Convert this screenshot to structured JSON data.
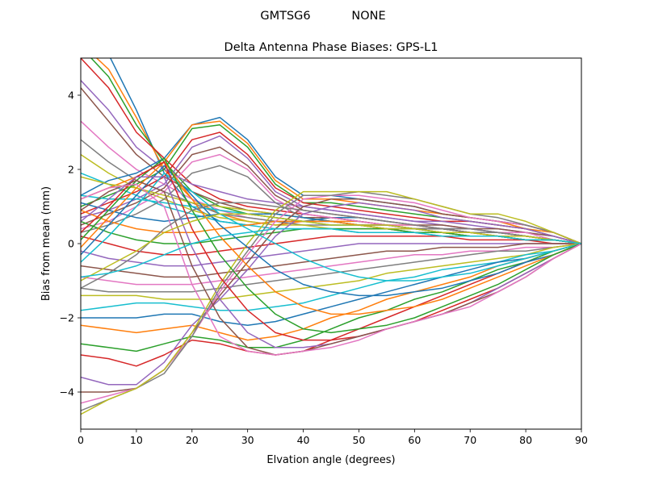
{
  "chart_data": {
    "type": "line",
    "suptitle": "GMTSG6           NONE",
    "title": "Delta Antenna Phase Biases: GPS-L1",
    "xlabel": "Elvation angle (degrees)",
    "ylabel": "Bias from mean (mm)",
    "xlim": [
      0,
      90
    ],
    "ylim": [
      -5,
      5
    ],
    "xticks": [
      0,
      10,
      20,
      30,
      40,
      50,
      60,
      70,
      80,
      90
    ],
    "yticks": [
      -4,
      -2,
      0,
      2,
      4
    ],
    "ytick_labels": [
      "−4",
      "−2",
      "0",
      "2",
      "4"
    ],
    "grid": false,
    "legend": "none",
    "x": [
      0,
      5,
      10,
      15,
      20,
      25,
      30,
      35,
      40,
      45,
      50,
      55,
      60,
      65,
      70,
      75,
      80,
      85,
      90
    ],
    "colors": [
      "#1f77b4",
      "#ff7f0e",
      "#2ca02c",
      "#d62728",
      "#9467bd",
      "#8c564b",
      "#e377c2",
      "#7f7f7f",
      "#bcbd22",
      "#17becf"
    ],
    "series": [
      {
        "values": [
          5.6,
          5.1,
          3.6,
          1.9,
          1.0,
          0.6,
          0.5,
          0.6,
          0.6,
          0.7,
          0.7,
          0.6,
          0.5,
          0.4,
          0.4,
          0.3,
          0.2,
          0.1,
          0.0
        ]
      },
      {
        "values": [
          5.4,
          4.7,
          3.4,
          2.0,
          1.2,
          0.8,
          0.6,
          0.5,
          0.6,
          0.6,
          0.6,
          0.5,
          0.5,
          0.4,
          0.3,
          0.3,
          0.2,
          0.1,
          0.0
        ]
      },
      {
        "values": [
          5.3,
          4.5,
          3.2,
          2.2,
          1.4,
          1.0,
          0.8,
          0.7,
          0.6,
          0.6,
          0.5,
          0.5,
          0.4,
          0.4,
          0.3,
          0.3,
          0.2,
          0.1,
          0.0
        ]
      },
      {
        "values": [
          5.0,
          4.2,
          3.0,
          2.3,
          1.6,
          1.2,
          1.0,
          0.9,
          0.8,
          0.7,
          0.6,
          0.5,
          0.4,
          0.4,
          0.3,
          0.3,
          0.2,
          0.1,
          0.0
        ]
      },
      {
        "values": [
          4.4,
          3.6,
          2.6,
          2.0,
          1.6,
          1.4,
          1.2,
          1.1,
          1.0,
          0.9,
          0.8,
          0.7,
          0.6,
          0.5,
          0.4,
          0.3,
          0.2,
          0.1,
          0.0
        ]
      },
      {
        "values": [
          4.2,
          3.3,
          2.4,
          1.8,
          1.4,
          1.1,
          0.9,
          0.8,
          0.7,
          0.7,
          0.6,
          0.5,
          0.4,
          0.4,
          0.3,
          0.2,
          0.2,
          0.1,
          0.0
        ]
      },
      {
        "values": [
          3.3,
          2.6,
          2.0,
          1.6,
          1.2,
          0.9,
          0.7,
          0.6,
          0.6,
          0.6,
          0.5,
          0.5,
          0.4,
          0.3,
          0.3,
          0.2,
          0.2,
          0.1,
          0.0
        ]
      },
      {
        "values": [
          2.8,
          2.2,
          1.7,
          1.4,
          1.1,
          0.8,
          0.7,
          0.6,
          0.5,
          0.5,
          0.5,
          0.4,
          0.4,
          0.3,
          0.3,
          0.2,
          0.1,
          0.1,
          0.0
        ]
      },
      {
        "values": [
          2.4,
          1.9,
          1.5,
          1.2,
          0.9,
          0.7,
          0.6,
          0.5,
          0.5,
          0.4,
          0.4,
          0.4,
          0.3,
          0.3,
          0.2,
          0.2,
          0.1,
          0.1,
          0.0
        ]
      },
      {
        "values": [
          1.9,
          1.6,
          1.3,
          1.0,
          0.8,
          0.6,
          0.5,
          0.4,
          0.4,
          0.4,
          0.3,
          0.3,
          0.3,
          0.2,
          0.2,
          0.2,
          0.1,
          0.1,
          0.0
        ]
      },
      {
        "values": [
          1.3,
          1.7,
          1.9,
          2.3,
          3.2,
          3.4,
          2.8,
          1.8,
          1.3,
          1.3,
          1.2,
          1.1,
          1.0,
          0.8,
          0.7,
          0.6,
          0.5,
          0.3,
          0.0
        ]
      },
      {
        "values": [
          1.2,
          1.5,
          1.8,
          2.2,
          3.2,
          3.3,
          2.7,
          1.7,
          1.2,
          1.2,
          1.1,
          1.0,
          0.9,
          0.8,
          0.7,
          0.6,
          0.4,
          0.3,
          0.0
        ]
      },
      {
        "values": [
          1.0,
          1.3,
          1.6,
          2.0,
          3.1,
          3.2,
          2.6,
          1.6,
          1.1,
          1.1,
          1.0,
          0.9,
          0.8,
          0.7,
          0.6,
          0.5,
          0.4,
          0.2,
          0.0
        ]
      },
      {
        "values": [
          0.8,
          1.1,
          1.4,
          1.8,
          2.8,
          3.0,
          2.4,
          1.5,
          1.1,
          1.0,
          0.9,
          0.8,
          0.7,
          0.6,
          0.6,
          0.5,
          0.4,
          0.2,
          0.0
        ]
      },
      {
        "values": [
          0.7,
          0.9,
          1.2,
          1.6,
          2.6,
          2.9,
          2.3,
          1.4,
          1.0,
          0.9,
          0.8,
          0.7,
          0.6,
          0.6,
          0.5,
          0.4,
          0.3,
          0.2,
          0.0
        ]
      },
      {
        "values": [
          0.5,
          0.8,
          1.1,
          1.5,
          2.4,
          2.6,
          2.1,
          1.3,
          0.9,
          0.8,
          0.7,
          0.6,
          0.5,
          0.5,
          0.4,
          0.4,
          0.3,
          0.2,
          0.0
        ]
      },
      {
        "values": [
          0.4,
          0.6,
          1.0,
          1.4,
          2.2,
          2.4,
          2.0,
          1.2,
          0.8,
          0.7,
          0.6,
          0.5,
          0.5,
          0.4,
          0.4,
          0.3,
          0.3,
          0.1,
          0.0
        ]
      },
      {
        "values": [
          0.3,
          0.5,
          0.8,
          1.2,
          1.9,
          2.1,
          1.8,
          1.1,
          0.7,
          0.6,
          0.5,
          0.5,
          0.4,
          0.4,
          0.3,
          0.3,
          0.2,
          0.1,
          0.0
        ]
      },
      {
        "values": [
          1.8,
          1.6,
          1.5,
          1.3,
          1.1,
          1.0,
          0.9,
          0.8,
          0.7,
          0.6,
          0.5,
          0.5,
          0.4,
          0.3,
          0.3,
          0.2,
          0.2,
          0.1,
          0.0
        ]
      },
      {
        "values": [
          1.3,
          1.2,
          1.2,
          1.1,
          1.0,
          0.9,
          0.8,
          0.7,
          0.6,
          0.5,
          0.5,
          0.4,
          0.3,
          0.3,
          0.2,
          0.2,
          0.1,
          0.1,
          0.0
        ]
      },
      {
        "values": [
          1.1,
          0.9,
          0.7,
          0.6,
          0.7,
          0.8,
          0.8,
          0.8,
          0.7,
          0.6,
          0.5,
          0.4,
          0.4,
          0.3,
          0.2,
          0.2,
          0.1,
          0.1,
          0.0
        ]
      },
      {
        "values": [
          0.9,
          0.6,
          0.4,
          0.3,
          0.3,
          0.4,
          0.5,
          0.6,
          0.6,
          0.6,
          0.5,
          0.4,
          0.3,
          0.3,
          0.2,
          0.2,
          0.1,
          0.1,
          0.0
        ]
      },
      {
        "values": [
          0.6,
          0.3,
          0.1,
          0.0,
          0.0,
          0.1,
          0.2,
          0.3,
          0.4,
          0.4,
          0.4,
          0.4,
          0.3,
          0.3,
          0.2,
          0.2,
          0.1,
          0.1,
          0.0
        ]
      },
      {
        "values": [
          0.2,
          0.0,
          -0.2,
          -0.3,
          -0.3,
          -0.2,
          -0.1,
          0.0,
          0.1,
          0.2,
          0.2,
          0.2,
          0.2,
          0.2,
          0.1,
          0.1,
          0.1,
          0.0,
          0.0
        ]
      },
      {
        "values": [
          -0.2,
          -0.4,
          -0.5,
          -0.6,
          -0.6,
          -0.5,
          -0.4,
          -0.3,
          -0.2,
          -0.1,
          0.0,
          0.0,
          0.0,
          0.0,
          0.0,
          0.0,
          0.0,
          0.0,
          0.0
        ]
      },
      {
        "values": [
          -0.6,
          -0.7,
          -0.8,
          -0.9,
          -0.9,
          -0.8,
          -0.7,
          -0.6,
          -0.5,
          -0.4,
          -0.3,
          -0.2,
          -0.2,
          -0.1,
          -0.1,
          -0.1,
          0.0,
          0.0,
          0.0
        ]
      },
      {
        "values": [
          -0.9,
          -1.0,
          -1.1,
          -1.1,
          -1.1,
          -1.0,
          -0.9,
          -0.8,
          -0.7,
          -0.6,
          -0.5,
          -0.4,
          -0.3,
          -0.3,
          -0.2,
          -0.2,
          -0.1,
          -0.1,
          0.0
        ]
      },
      {
        "values": [
          -1.2,
          -1.3,
          -1.3,
          -1.3,
          -1.3,
          -1.2,
          -1.1,
          -1.0,
          -0.9,
          -0.8,
          -0.7,
          -0.6,
          -0.5,
          -0.4,
          -0.3,
          -0.2,
          -0.2,
          -0.1,
          0.0
        ]
      },
      {
        "values": [
          -1.4,
          -1.4,
          -1.4,
          -1.5,
          -1.5,
          -1.5,
          -1.4,
          -1.3,
          -1.2,
          -1.1,
          -1.0,
          -0.8,
          -0.7,
          -0.6,
          -0.5,
          -0.4,
          -0.3,
          -0.1,
          0.0
        ]
      },
      {
        "values": [
          -1.8,
          -1.7,
          -1.6,
          -1.6,
          -1.7,
          -1.8,
          -1.8,
          -1.7,
          -1.6,
          -1.4,
          -1.2,
          -1.0,
          -0.9,
          -0.7,
          -0.6,
          -0.5,
          -0.3,
          -0.2,
          0.0
        ]
      },
      {
        "values": [
          -2.0,
          -2.0,
          -2.0,
          -1.9,
          -1.9,
          -2.1,
          -2.2,
          -2.1,
          -1.9,
          -1.7,
          -1.5,
          -1.3,
          -1.1,
          -0.9,
          -0.7,
          -0.5,
          -0.4,
          -0.2,
          0.0
        ]
      },
      {
        "values": [
          -2.2,
          -2.3,
          -2.4,
          -2.3,
          -2.2,
          -2.4,
          -2.6,
          -2.5,
          -2.3,
          -2.0,
          -1.8,
          -1.5,
          -1.3,
          -1.1,
          -0.9,
          -0.6,
          -0.4,
          -0.2,
          0.0
        ]
      },
      {
        "values": [
          -2.7,
          -2.8,
          -2.9,
          -2.7,
          -2.5,
          -2.6,
          -2.8,
          -2.8,
          -2.6,
          -2.3,
          -2.0,
          -1.8,
          -1.5,
          -1.3,
          -1.0,
          -0.7,
          -0.5,
          -0.2,
          0.0
        ]
      },
      {
        "values": [
          -3.0,
          -3.1,
          -3.3,
          -3.0,
          -2.6,
          -2.7,
          -2.9,
          -3.0,
          -2.9,
          -2.6,
          -2.3,
          -2.0,
          -1.7,
          -1.4,
          -1.1,
          -0.8,
          -0.5,
          -0.3,
          0.0
        ]
      },
      {
        "values": [
          -3.6,
          -3.8,
          -3.8,
          -3.2,
          -2.2,
          -1.5,
          -0.7,
          0.2,
          0.8,
          1.0,
          1.1,
          1.0,
          0.9,
          0.7,
          0.6,
          0.5,
          0.4,
          0.2,
          0.0
        ]
      },
      {
        "values": [
          -4.0,
          -4.0,
          -3.9,
          -3.4,
          -2.4,
          -1.4,
          -0.5,
          0.4,
          1.0,
          1.2,
          1.2,
          1.1,
          1.0,
          0.8,
          0.7,
          0.6,
          0.5,
          0.3,
          0.0
        ]
      },
      {
        "values": [
          -4.3,
          -4.1,
          -3.9,
          -3.4,
          -2.5,
          -1.3,
          -0.3,
          0.6,
          1.2,
          1.3,
          1.3,
          1.2,
          1.1,
          0.9,
          0.7,
          0.6,
          0.5,
          0.3,
          0.0
        ]
      },
      {
        "values": [
          -4.5,
          -4.2,
          -3.9,
          -3.5,
          -2.5,
          -1.2,
          -0.2,
          0.8,
          1.3,
          1.3,
          1.4,
          1.3,
          1.2,
          1.0,
          0.8,
          0.7,
          0.5,
          0.3,
          0.0
        ]
      },
      {
        "values": [
          -4.6,
          -4.2,
          -3.9,
          -3.4,
          -2.4,
          -1.1,
          0.0,
          0.9,
          1.4,
          1.4,
          1.4,
          1.4,
          1.2,
          1.0,
          0.8,
          0.8,
          0.6,
          0.3,
          0.0
        ]
      },
      {
        "values": [
          -0.5,
          0.2,
          1.0,
          1.9,
          1.4,
          0.8,
          0.4,
          0.0,
          -0.4,
          -0.7,
          -0.9,
          -1.0,
          -1.0,
          -0.9,
          -0.8,
          -0.6,
          -0.4,
          -0.2,
          0.0
        ]
      },
      {
        "values": [
          -0.3,
          0.5,
          1.3,
          2.1,
          1.3,
          0.5,
          -0.1,
          -0.7,
          -1.1,
          -1.3,
          -1.4,
          -1.4,
          -1.3,
          -1.2,
          -1.0,
          -0.8,
          -0.5,
          -0.3,
          0.0
        ]
      },
      {
        "values": [
          -0.1,
          0.7,
          1.5,
          2.2,
          1.2,
          0.2,
          -0.6,
          -1.3,
          -1.7,
          -1.9,
          -1.9,
          -1.8,
          -1.7,
          -1.5,
          -1.2,
          -0.9,
          -0.6,
          -0.3,
          0.0
        ]
      },
      {
        "values": [
          0.1,
          0.9,
          1.7,
          2.3,
          0.9,
          -0.3,
          -1.2,
          -1.9,
          -2.3,
          -2.4,
          -2.3,
          -2.2,
          -2.0,
          -1.7,
          -1.4,
          -1.1,
          -0.7,
          -0.3,
          0.0
        ]
      },
      {
        "values": [
          0.3,
          1.0,
          1.8,
          2.2,
          0.4,
          -0.9,
          -1.8,
          -2.4,
          -2.6,
          -2.6,
          -2.5,
          -2.3,
          -2.1,
          -1.8,
          -1.5,
          -1.2,
          -0.8,
          -0.4,
          0.0
        ]
      },
      {
        "values": [
          0.6,
          1.2,
          1.8,
          1.8,
          -0.1,
          -1.5,
          -2.4,
          -2.8,
          -2.8,
          -2.7,
          -2.5,
          -2.3,
          -2.1,
          -1.9,
          -1.6,
          -1.2,
          -0.8,
          -0.4,
          0.0
        ]
      },
      {
        "values": [
          0.9,
          1.4,
          1.7,
          1.4,
          -0.6,
          -2.0,
          -2.8,
          -3.0,
          -2.9,
          -2.7,
          -2.5,
          -2.3,
          -2.1,
          -1.9,
          -1.6,
          -1.3,
          -0.9,
          -0.4,
          0.0
        ]
      },
      {
        "values": [
          1.2,
          1.5,
          1.6,
          1.0,
          -1.1,
          -2.5,
          -2.9,
          -3.0,
          -2.9,
          -2.8,
          -2.6,
          -2.3,
          -2.1,
          -1.9,
          -1.7,
          -1.3,
          -0.9,
          -0.4,
          0.0
        ]
      },
      {
        "values": [
          -1.2,
          -0.8,
          -0.3,
          0.4,
          0.9,
          1.1,
          1.1,
          1.0,
          0.9,
          0.8,
          0.7,
          0.6,
          0.5,
          0.4,
          0.4,
          0.3,
          0.2,
          0.1,
          0.0
        ]
      },
      {
        "values": [
          -1.0,
          -0.6,
          -0.2,
          0.3,
          0.6,
          0.8,
          0.8,
          0.7,
          0.6,
          0.5,
          0.5,
          0.4,
          0.4,
          0.3,
          0.3,
          0.2,
          0.2,
          0.1,
          0.0
        ]
      },
      {
        "values": [
          -0.9,
          -0.8,
          -0.6,
          -0.3,
          0.0,
          0.2,
          0.3,
          0.4,
          0.4,
          0.4,
          0.3,
          0.3,
          0.3,
          0.2,
          0.2,
          0.2,
          0.1,
          0.1,
          0.0
        ]
      }
    ]
  }
}
